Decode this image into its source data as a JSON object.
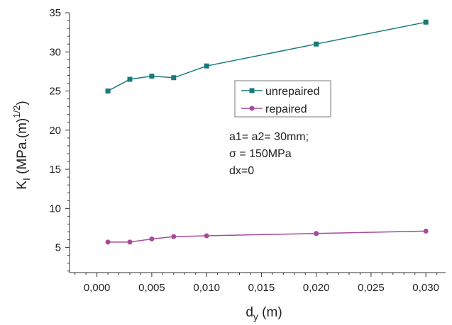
{
  "chart_data": {
    "type": "line",
    "title": "",
    "xlabel": {
      "main": "d",
      "sub": "y",
      "unit": " (m)"
    },
    "ylabel": {
      "main": "K",
      "sub": "I",
      "unit": " (MPa.(m)",
      "sup": "1/2",
      "close": ")"
    },
    "xlim": [
      -0.0025,
      0.0318
    ],
    "ylim": [
      1.8,
      35
    ],
    "x_ticks": [
      0.0,
      0.005,
      0.01,
      0.015,
      0.02,
      0.025,
      0.03
    ],
    "x_tick_labels": [
      "0,000",
      "0,005",
      "0,010",
      "0,015",
      "0,020",
      "0,025",
      "0,030"
    ],
    "y_ticks": [
      5,
      10,
      15,
      20,
      25,
      30,
      35
    ],
    "y_tick_labels": [
      "5",
      "10",
      "15",
      "20",
      "25",
      "30",
      "35"
    ],
    "grid": false,
    "legend_position": "center-right",
    "series": [
      {
        "name": "unrepaired",
        "color": "#1a7a7a",
        "marker": "square",
        "x": [
          0.001,
          0.003,
          0.005,
          0.007,
          0.01,
          0.02,
          0.03
        ],
        "y": [
          25.0,
          26.5,
          26.9,
          26.7,
          28.2,
          31.0,
          33.8
        ]
      },
      {
        "name": "repaired",
        "color": "#a64a9a",
        "marker": "circle",
        "x": [
          0.001,
          0.003,
          0.005,
          0.007,
          0.01,
          0.02,
          0.03
        ],
        "y": [
          5.7,
          5.7,
          6.1,
          6.4,
          6.5,
          6.8,
          7.1
        ]
      }
    ],
    "annotations": [
      "a1= a2= 30mm;",
      "σ = 150MPa",
      "dx=0"
    ]
  }
}
